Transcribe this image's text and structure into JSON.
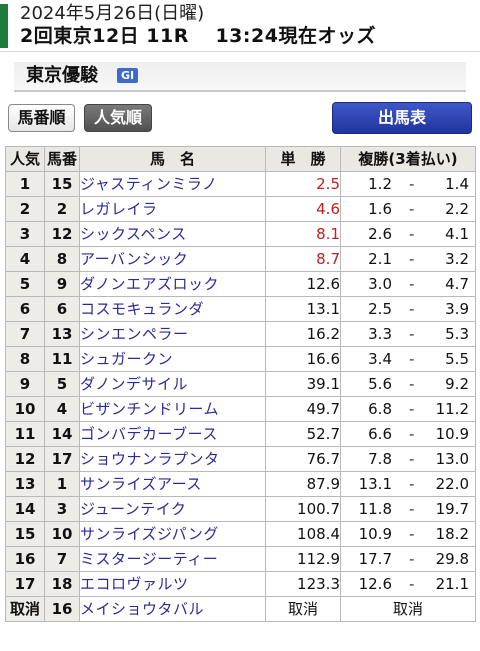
{
  "header": {
    "date": "2024年5月26日(日曜)",
    "race": "2回東京12日 11R　 13:24現在オッズ",
    "accent_color": "#1f7a3c"
  },
  "race": {
    "name": "東京優駿",
    "grade": "GⅠ"
  },
  "buttons": {
    "by_number": "馬番順",
    "by_popularity": "人気順",
    "entry_list": "出馬表"
  },
  "table": {
    "headers": {
      "popularity": "人気",
      "number": "馬番",
      "name": "馬　名",
      "win": "単　勝",
      "place": "複勝(3着払い)"
    },
    "dash": "-",
    "rows": [
      {
        "pop": "1",
        "num": "15",
        "name": "ジャスティンミラノ",
        "win": "2.5",
        "hot": true,
        "place_lo": "1.2",
        "place_hi": "1.4"
      },
      {
        "pop": "2",
        "num": "2",
        "name": "レガレイラ",
        "win": "4.6",
        "hot": true,
        "place_lo": "1.6",
        "place_hi": "2.2"
      },
      {
        "pop": "3",
        "num": "12",
        "name": "シックスペンス",
        "win": "8.1",
        "hot": true,
        "place_lo": "2.6",
        "place_hi": "4.1"
      },
      {
        "pop": "4",
        "num": "8",
        "name": "アーバンシック",
        "win": "8.7",
        "hot": true,
        "place_lo": "2.1",
        "place_hi": "3.2"
      },
      {
        "pop": "5",
        "num": "9",
        "name": "ダノンエアズロック",
        "win": "12.6",
        "hot": false,
        "place_lo": "3.0",
        "place_hi": "4.7"
      },
      {
        "pop": "6",
        "num": "6",
        "name": "コスモキュランダ",
        "win": "13.1",
        "hot": false,
        "place_lo": "2.5",
        "place_hi": "3.9"
      },
      {
        "pop": "7",
        "num": "13",
        "name": "シンエンペラー",
        "win": "16.2",
        "hot": false,
        "place_lo": "3.3",
        "place_hi": "5.3"
      },
      {
        "pop": "8",
        "num": "11",
        "name": "シュガークン",
        "win": "16.6",
        "hot": false,
        "place_lo": "3.4",
        "place_hi": "5.5"
      },
      {
        "pop": "9",
        "num": "5",
        "name": "ダノンデサイル",
        "win": "39.1",
        "hot": false,
        "place_lo": "5.6",
        "place_hi": "9.2"
      },
      {
        "pop": "10",
        "num": "4",
        "name": "ビザンチンドリーム",
        "win": "49.7",
        "hot": false,
        "place_lo": "6.8",
        "place_hi": "11.2"
      },
      {
        "pop": "11",
        "num": "14",
        "name": "ゴンバデカーブース",
        "win": "52.7",
        "hot": false,
        "place_lo": "6.6",
        "place_hi": "10.9"
      },
      {
        "pop": "12",
        "num": "17",
        "name": "ショウナンラプンタ",
        "win": "76.7",
        "hot": false,
        "place_lo": "7.8",
        "place_hi": "13.0"
      },
      {
        "pop": "13",
        "num": "1",
        "name": "サンライズアース",
        "win": "87.9",
        "hot": false,
        "place_lo": "13.1",
        "place_hi": "22.0"
      },
      {
        "pop": "14",
        "num": "3",
        "name": "ジューンテイク",
        "win": "100.7",
        "hot": false,
        "place_lo": "11.8",
        "place_hi": "19.7"
      },
      {
        "pop": "15",
        "num": "10",
        "name": "サンライズジパング",
        "win": "108.4",
        "hot": false,
        "place_lo": "10.9",
        "place_hi": "18.2"
      },
      {
        "pop": "16",
        "num": "7",
        "name": "ミスタージーティー",
        "win": "112.9",
        "hot": false,
        "place_lo": "17.7",
        "place_hi": "29.8"
      },
      {
        "pop": "17",
        "num": "18",
        "name": "エコロヴァルツ",
        "win": "123.3",
        "hot": false,
        "place_lo": "12.6",
        "place_hi": "21.1"
      }
    ],
    "scratched": {
      "pop": "取消",
      "num": "16",
      "name": "メイショウタバル",
      "win": "取消",
      "place": "取消"
    }
  }
}
